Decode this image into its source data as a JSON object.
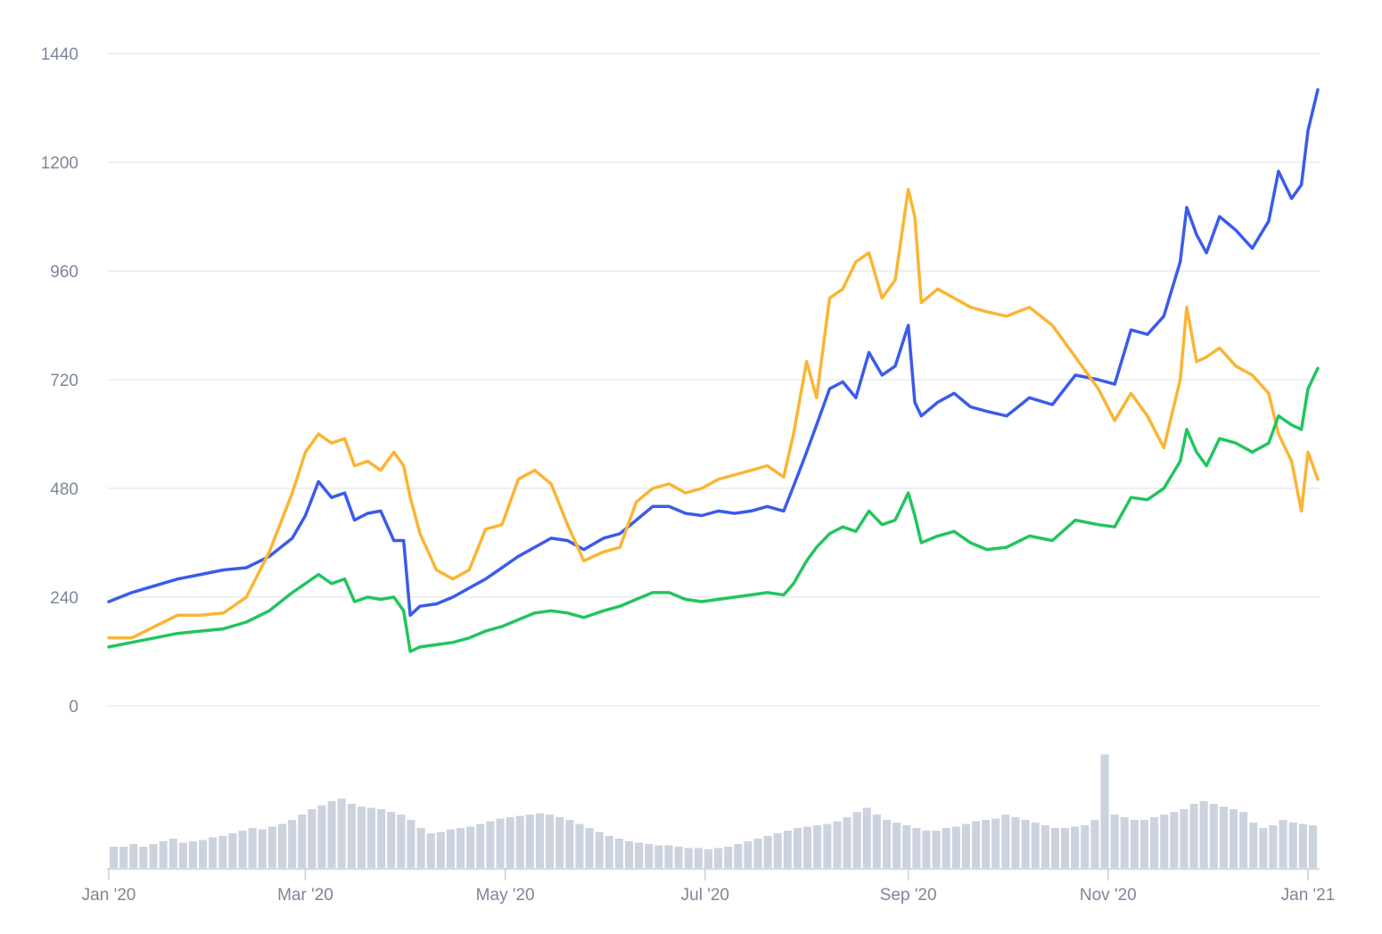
{
  "chart_data": {
    "type": "line",
    "title": "",
    "xlabel": "",
    "ylabel": "",
    "y_ticks": [
      "0",
      "240",
      "480",
      "720",
      "960",
      "1200",
      "1440"
    ],
    "ylim": [
      0,
      1440
    ],
    "x_ticks": [
      "Jan '20",
      "Mar '20",
      "May '20",
      "Jul '20",
      "Sep '20",
      "Nov '20",
      "Jan '21"
    ],
    "x_tick_dates": [
      "2020-01-01",
      "2020-03-01",
      "2020-05-01",
      "2020-07-01",
      "2020-09-01",
      "2020-11-01",
      "2021-01-01"
    ],
    "xlim": [
      "2020-01-01",
      "2021-01-04"
    ],
    "grid": true,
    "legend": "none",
    "series": [
      {
        "color": "#3b5bea",
        "points": [
          [
            "2020-01-01",
            230
          ],
          [
            "2020-01-08",
            250
          ],
          [
            "2020-01-15",
            265
          ],
          [
            "2020-01-22",
            280
          ],
          [
            "2020-01-29",
            290
          ],
          [
            "2020-02-05",
            300
          ],
          [
            "2020-02-12",
            305
          ],
          [
            "2020-02-19",
            330
          ],
          [
            "2020-02-26",
            370
          ],
          [
            "2020-03-01",
            420
          ],
          [
            "2020-03-05",
            495
          ],
          [
            "2020-03-09",
            460
          ],
          [
            "2020-03-13",
            470
          ],
          [
            "2020-03-16",
            410
          ],
          [
            "2020-03-20",
            425
          ],
          [
            "2020-03-24",
            430
          ],
          [
            "2020-03-28",
            365
          ],
          [
            "2020-03-31",
            365
          ],
          [
            "2020-04-02",
            200
          ],
          [
            "2020-04-05",
            220
          ],
          [
            "2020-04-10",
            225
          ],
          [
            "2020-04-15",
            240
          ],
          [
            "2020-04-20",
            260
          ],
          [
            "2020-04-25",
            280
          ],
          [
            "2020-04-30",
            305
          ],
          [
            "2020-05-05",
            330
          ],
          [
            "2020-05-10",
            350
          ],
          [
            "2020-05-15",
            370
          ],
          [
            "2020-05-20",
            365
          ],
          [
            "2020-05-25",
            345
          ],
          [
            "2020-05-31",
            370
          ],
          [
            "2020-06-05",
            380
          ],
          [
            "2020-06-10",
            410
          ],
          [
            "2020-06-15",
            440
          ],
          [
            "2020-06-20",
            440
          ],
          [
            "2020-06-25",
            425
          ],
          [
            "2020-06-30",
            420
          ],
          [
            "2020-07-05",
            430
          ],
          [
            "2020-07-10",
            425
          ],
          [
            "2020-07-15",
            430
          ],
          [
            "2020-07-20",
            440
          ],
          [
            "2020-07-25",
            430
          ],
          [
            "2020-07-28",
            485
          ],
          [
            "2020-08-01",
            560
          ],
          [
            "2020-08-04",
            620
          ],
          [
            "2020-08-08",
            700
          ],
          [
            "2020-08-12",
            715
          ],
          [
            "2020-08-16",
            680
          ],
          [
            "2020-08-20",
            780
          ],
          [
            "2020-08-24",
            730
          ],
          [
            "2020-08-28",
            750
          ],
          [
            "2020-09-01",
            840
          ],
          [
            "2020-09-03",
            670
          ],
          [
            "2020-09-05",
            640
          ],
          [
            "2020-09-10",
            670
          ],
          [
            "2020-09-15",
            690
          ],
          [
            "2020-09-20",
            660
          ],
          [
            "2020-09-25",
            650
          ],
          [
            "2020-10-01",
            640
          ],
          [
            "2020-10-08",
            680
          ],
          [
            "2020-10-15",
            665
          ],
          [
            "2020-10-22",
            730
          ],
          [
            "2020-10-29",
            720
          ],
          [
            "2020-11-03",
            710
          ],
          [
            "2020-11-08",
            830
          ],
          [
            "2020-11-13",
            820
          ],
          [
            "2020-11-18",
            860
          ],
          [
            "2020-11-23",
            980
          ],
          [
            "2020-11-25",
            1100
          ],
          [
            "2020-11-28",
            1040
          ],
          [
            "2020-12-01",
            1000
          ],
          [
            "2020-12-05",
            1080
          ],
          [
            "2020-12-10",
            1050
          ],
          [
            "2020-12-15",
            1010
          ],
          [
            "2020-12-20",
            1070
          ],
          [
            "2020-12-23",
            1180
          ],
          [
            "2020-12-27",
            1120
          ],
          [
            "2020-12-30",
            1150
          ],
          [
            "2021-01-01",
            1270
          ],
          [
            "2021-01-04",
            1360
          ]
        ]
      },
      {
        "color": "#fbb534",
        "points": [
          [
            "2020-01-01",
            150
          ],
          [
            "2020-01-08",
            150
          ],
          [
            "2020-01-15",
            175
          ],
          [
            "2020-01-22",
            200
          ],
          [
            "2020-01-29",
            200
          ],
          [
            "2020-02-05",
            205
          ],
          [
            "2020-02-12",
            240
          ],
          [
            "2020-02-19",
            340
          ],
          [
            "2020-02-26",
            470
          ],
          [
            "2020-03-01",
            560
          ],
          [
            "2020-03-05",
            600
          ],
          [
            "2020-03-09",
            580
          ],
          [
            "2020-03-13",
            590
          ],
          [
            "2020-03-16",
            530
          ],
          [
            "2020-03-20",
            540
          ],
          [
            "2020-03-24",
            520
          ],
          [
            "2020-03-28",
            560
          ],
          [
            "2020-03-31",
            530
          ],
          [
            "2020-04-02",
            460
          ],
          [
            "2020-04-05",
            380
          ],
          [
            "2020-04-10",
            300
          ],
          [
            "2020-04-15",
            280
          ],
          [
            "2020-04-20",
            300
          ],
          [
            "2020-04-25",
            390
          ],
          [
            "2020-04-30",
            400
          ],
          [
            "2020-05-05",
            500
          ],
          [
            "2020-05-10",
            520
          ],
          [
            "2020-05-15",
            490
          ],
          [
            "2020-05-20",
            400
          ],
          [
            "2020-05-25",
            320
          ],
          [
            "2020-05-31",
            340
          ],
          [
            "2020-06-05",
            350
          ],
          [
            "2020-06-10",
            450
          ],
          [
            "2020-06-15",
            480
          ],
          [
            "2020-06-20",
            490
          ],
          [
            "2020-06-25",
            470
          ],
          [
            "2020-06-30",
            480
          ],
          [
            "2020-07-05",
            500
          ],
          [
            "2020-07-10",
            510
          ],
          [
            "2020-07-15",
            520
          ],
          [
            "2020-07-20",
            530
          ],
          [
            "2020-07-25",
            505
          ],
          [
            "2020-07-28",
            600
          ],
          [
            "2020-08-01",
            760
          ],
          [
            "2020-08-04",
            680
          ],
          [
            "2020-08-08",
            900
          ],
          [
            "2020-08-12",
            920
          ],
          [
            "2020-08-16",
            980
          ],
          [
            "2020-08-20",
            1000
          ],
          [
            "2020-08-24",
            900
          ],
          [
            "2020-08-28",
            940
          ],
          [
            "2020-09-01",
            1140
          ],
          [
            "2020-09-03",
            1080
          ],
          [
            "2020-09-05",
            890
          ],
          [
            "2020-09-10",
            920
          ],
          [
            "2020-09-15",
            900
          ],
          [
            "2020-09-20",
            880
          ],
          [
            "2020-09-25",
            870
          ],
          [
            "2020-10-01",
            860
          ],
          [
            "2020-10-08",
            880
          ],
          [
            "2020-10-15",
            840
          ],
          [
            "2020-10-22",
            770
          ],
          [
            "2020-10-29",
            700
          ],
          [
            "2020-11-03",
            630
          ],
          [
            "2020-11-08",
            690
          ],
          [
            "2020-11-13",
            640
          ],
          [
            "2020-11-18",
            570
          ],
          [
            "2020-11-23",
            720
          ],
          [
            "2020-11-25",
            880
          ],
          [
            "2020-11-28",
            760
          ],
          [
            "2020-12-01",
            770
          ],
          [
            "2020-12-05",
            790
          ],
          [
            "2020-12-10",
            750
          ],
          [
            "2020-12-15",
            730
          ],
          [
            "2020-12-20",
            690
          ],
          [
            "2020-12-23",
            600
          ],
          [
            "2020-12-27",
            540
          ],
          [
            "2020-12-30",
            430
          ],
          [
            "2021-01-01",
            560
          ],
          [
            "2021-01-04",
            500
          ]
        ]
      },
      {
        "color": "#22c55e",
        "points": [
          [
            "2020-01-01",
            130
          ],
          [
            "2020-01-08",
            140
          ],
          [
            "2020-01-15",
            150
          ],
          [
            "2020-01-22",
            160
          ],
          [
            "2020-01-29",
            165
          ],
          [
            "2020-02-05",
            170
          ],
          [
            "2020-02-12",
            185
          ],
          [
            "2020-02-19",
            210
          ],
          [
            "2020-02-26",
            250
          ],
          [
            "2020-03-01",
            270
          ],
          [
            "2020-03-05",
            290
          ],
          [
            "2020-03-09",
            270
          ],
          [
            "2020-03-13",
            280
          ],
          [
            "2020-03-16",
            230
          ],
          [
            "2020-03-20",
            240
          ],
          [
            "2020-03-24",
            235
          ],
          [
            "2020-03-28",
            240
          ],
          [
            "2020-03-31",
            210
          ],
          [
            "2020-04-02",
            120
          ],
          [
            "2020-04-05",
            130
          ],
          [
            "2020-04-10",
            135
          ],
          [
            "2020-04-15",
            140
          ],
          [
            "2020-04-20",
            150
          ],
          [
            "2020-04-25",
            165
          ],
          [
            "2020-04-30",
            175
          ],
          [
            "2020-05-05",
            190
          ],
          [
            "2020-05-10",
            205
          ],
          [
            "2020-05-15",
            210
          ],
          [
            "2020-05-20",
            205
          ],
          [
            "2020-05-25",
            195
          ],
          [
            "2020-05-31",
            210
          ],
          [
            "2020-06-05",
            220
          ],
          [
            "2020-06-10",
            235
          ],
          [
            "2020-06-15",
            250
          ],
          [
            "2020-06-20",
            250
          ],
          [
            "2020-06-25",
            235
          ],
          [
            "2020-06-30",
            230
          ],
          [
            "2020-07-05",
            235
          ],
          [
            "2020-07-10",
            240
          ],
          [
            "2020-07-15",
            245
          ],
          [
            "2020-07-20",
            250
          ],
          [
            "2020-07-25",
            245
          ],
          [
            "2020-07-28",
            270
          ],
          [
            "2020-08-01",
            320
          ],
          [
            "2020-08-04",
            350
          ],
          [
            "2020-08-08",
            380
          ],
          [
            "2020-08-12",
            395
          ],
          [
            "2020-08-16",
            385
          ],
          [
            "2020-08-20",
            430
          ],
          [
            "2020-08-24",
            400
          ],
          [
            "2020-08-28",
            410
          ],
          [
            "2020-09-01",
            470
          ],
          [
            "2020-09-03",
            420
          ],
          [
            "2020-09-05",
            360
          ],
          [
            "2020-09-10",
            375
          ],
          [
            "2020-09-15",
            385
          ],
          [
            "2020-09-20",
            360
          ],
          [
            "2020-09-25",
            345
          ],
          [
            "2020-10-01",
            350
          ],
          [
            "2020-10-08",
            375
          ],
          [
            "2020-10-15",
            365
          ],
          [
            "2020-10-22",
            410
          ],
          [
            "2020-10-29",
            400
          ],
          [
            "2020-11-03",
            395
          ],
          [
            "2020-11-08",
            460
          ],
          [
            "2020-11-13",
            455
          ],
          [
            "2020-11-18",
            480
          ],
          [
            "2020-11-23",
            540
          ],
          [
            "2020-11-25",
            610
          ],
          [
            "2020-11-28",
            560
          ],
          [
            "2020-12-01",
            530
          ],
          [
            "2020-12-05",
            590
          ],
          [
            "2020-12-10",
            580
          ],
          [
            "2020-12-15",
            560
          ],
          [
            "2020-12-20",
            580
          ],
          [
            "2020-12-23",
            640
          ],
          [
            "2020-12-27",
            620
          ],
          [
            "2020-12-30",
            610
          ],
          [
            "2021-01-01",
            700
          ],
          [
            "2021-01-04",
            745
          ]
        ]
      }
    ],
    "volume": {
      "color": "#cdd3de",
      "relative_values": [
        0.16,
        0.16,
        0.18,
        0.16,
        0.18,
        0.2,
        0.22,
        0.19,
        0.2,
        0.21,
        0.23,
        0.24,
        0.26,
        0.28,
        0.3,
        0.29,
        0.31,
        0.33,
        0.36,
        0.4,
        0.44,
        0.47,
        0.5,
        0.52,
        0.48,
        0.46,
        0.45,
        0.44,
        0.42,
        0.4,
        0.36,
        0.3,
        0.26,
        0.27,
        0.29,
        0.3,
        0.31,
        0.33,
        0.35,
        0.37,
        0.38,
        0.39,
        0.4,
        0.41,
        0.4,
        0.38,
        0.36,
        0.33,
        0.3,
        0.27,
        0.24,
        0.22,
        0.2,
        0.19,
        0.18,
        0.17,
        0.17,
        0.16,
        0.15,
        0.15,
        0.14,
        0.15,
        0.16,
        0.18,
        0.2,
        0.22,
        0.24,
        0.26,
        0.28,
        0.3,
        0.31,
        0.32,
        0.33,
        0.35,
        0.38,
        0.42,
        0.45,
        0.4,
        0.36,
        0.34,
        0.32,
        0.3,
        0.28,
        0.28,
        0.3,
        0.31,
        0.33,
        0.35,
        0.36,
        0.37,
        0.4,
        0.38,
        0.36,
        0.34,
        0.32,
        0.3,
        0.3,
        0.31,
        0.32,
        0.36,
        0.85,
        0.4,
        0.38,
        0.36,
        0.36,
        0.38,
        0.4,
        0.42,
        0.44,
        0.48,
        0.5,
        0.48,
        0.46,
        0.44,
        0.42,
        0.34,
        0.3,
        0.32,
        0.36,
        0.34,
        0.33,
        0.32
      ]
    }
  }
}
